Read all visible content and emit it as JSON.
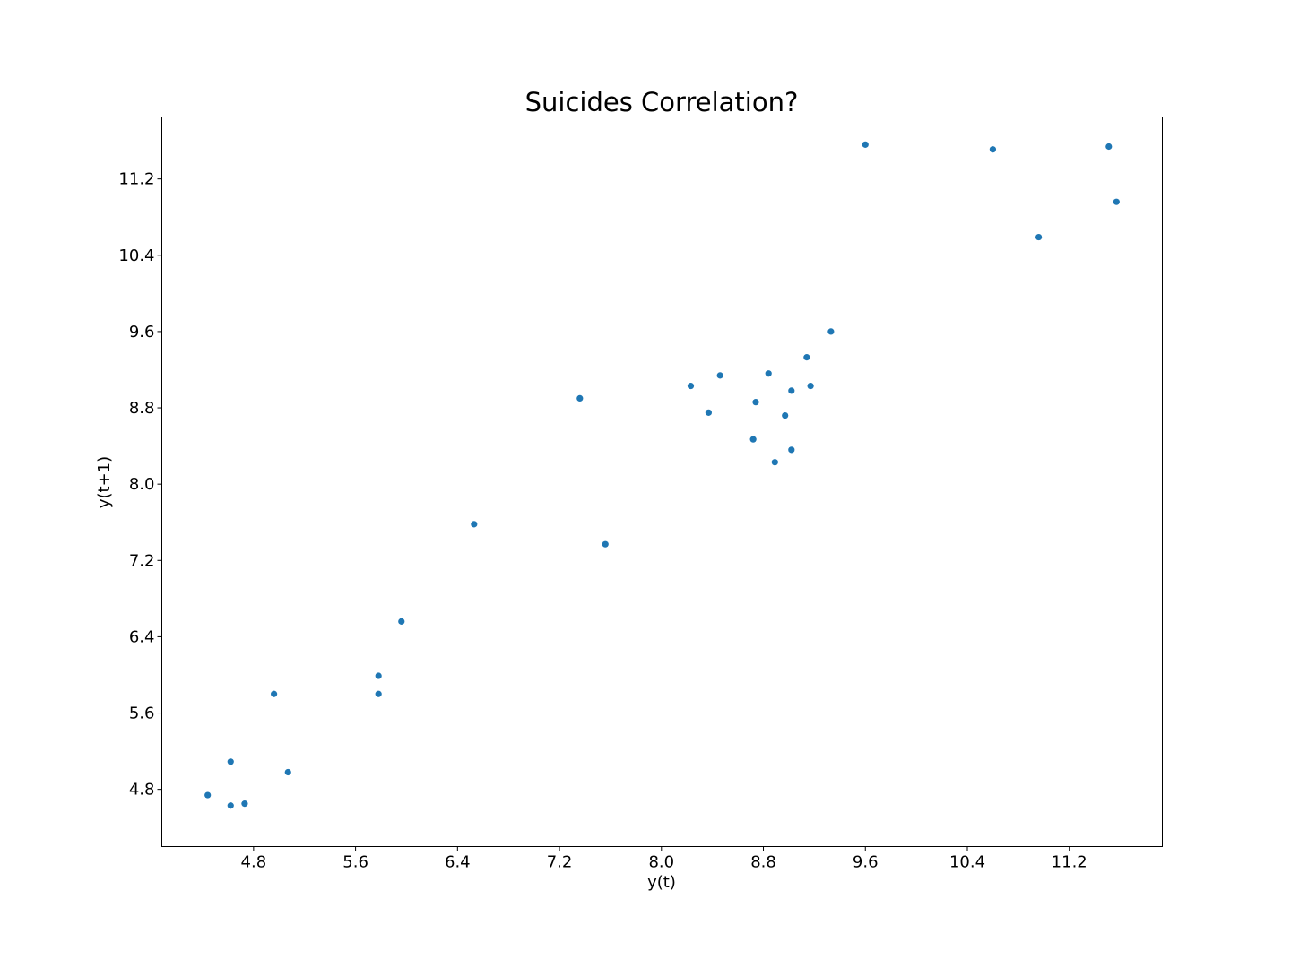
{
  "chart_data": {
    "type": "scatter",
    "title": "Suicides Correlation?",
    "xlabel": "y(t)",
    "ylabel": "y(t+1)",
    "xlim": [
      4.08,
      11.93
    ],
    "ylim": [
      4.2,
      11.85
    ],
    "xticks": [
      "4.8",
      "5.6",
      "6.4",
      "7.2",
      "8.0",
      "8.8",
      "9.6",
      "10.4",
      "11.2"
    ],
    "yticks": [
      "4.8",
      "5.6",
      "6.4",
      "7.2",
      "8.0",
      "8.8",
      "9.6",
      "10.4",
      "11.2"
    ],
    "marker_color": "#1f77b4",
    "grid": false,
    "points": [
      {
        "x": 4.44,
        "y": 4.74
      },
      {
        "x": 4.62,
        "y": 4.63
      },
      {
        "x": 4.73,
        "y": 4.65
      },
      {
        "x": 4.62,
        "y": 5.09
      },
      {
        "x": 4.96,
        "y": 5.8
      },
      {
        "x": 5.07,
        "y": 4.98
      },
      {
        "x": 5.78,
        "y": 5.8
      },
      {
        "x": 5.78,
        "y": 5.99
      },
      {
        "x": 5.96,
        "y": 6.56
      },
      {
        "x": 6.53,
        "y": 7.58
      },
      {
        "x": 7.36,
        "y": 8.9
      },
      {
        "x": 7.56,
        "y": 7.37
      },
      {
        "x": 8.23,
        "y": 9.03
      },
      {
        "x": 8.37,
        "y": 8.75
      },
      {
        "x": 8.46,
        "y": 9.14
      },
      {
        "x": 8.72,
        "y": 8.47
      },
      {
        "x": 8.74,
        "y": 8.86
      },
      {
        "x": 8.84,
        "y": 9.16
      },
      {
        "x": 8.89,
        "y": 8.23
      },
      {
        "x": 8.97,
        "y": 8.72
      },
      {
        "x": 9.02,
        "y": 8.98
      },
      {
        "x": 9.02,
        "y": 8.36
      },
      {
        "x": 9.14,
        "y": 9.33
      },
      {
        "x": 9.17,
        "y": 9.03
      },
      {
        "x": 9.33,
        "y": 9.6
      },
      {
        "x": 9.6,
        "y": 11.56
      },
      {
        "x": 10.6,
        "y": 11.51
      },
      {
        "x": 10.96,
        "y": 10.59
      },
      {
        "x": 11.51,
        "y": 11.54
      },
      {
        "x": 11.57,
        "y": 10.96
      }
    ]
  }
}
